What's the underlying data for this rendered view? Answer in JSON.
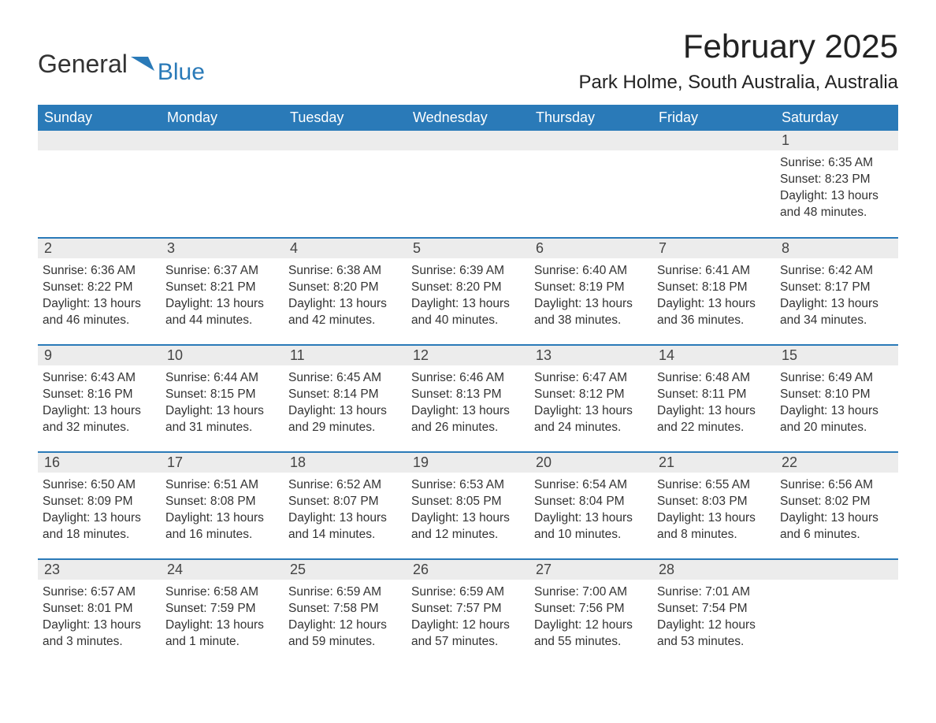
{
  "logo": {
    "text_general": "General",
    "text_blue": "Blue"
  },
  "title": "February 2025",
  "location": "Park Holme, South Australia, Australia",
  "columns": [
    "Sunday",
    "Monday",
    "Tuesday",
    "Wednesday",
    "Thursday",
    "Friday",
    "Saturday"
  ],
  "colors": {
    "header_bg": "#2a7ab8",
    "header_text": "#ffffff",
    "daynum_bg": "#ececec",
    "row_border": "#2a7ab8",
    "body_text": "#333333",
    "logo_blue": "#2a7ab8"
  },
  "weeks": [
    [
      null,
      null,
      null,
      null,
      null,
      null,
      {
        "n": "1",
        "sunrise": "6:35 AM",
        "sunset": "8:23 PM",
        "daylight": "13 hours and 48 minutes."
      }
    ],
    [
      {
        "n": "2",
        "sunrise": "6:36 AM",
        "sunset": "8:22 PM",
        "daylight": "13 hours and 46 minutes."
      },
      {
        "n": "3",
        "sunrise": "6:37 AM",
        "sunset": "8:21 PM",
        "daylight": "13 hours and 44 minutes."
      },
      {
        "n": "4",
        "sunrise": "6:38 AM",
        "sunset": "8:20 PM",
        "daylight": "13 hours and 42 minutes."
      },
      {
        "n": "5",
        "sunrise": "6:39 AM",
        "sunset": "8:20 PM",
        "daylight": "13 hours and 40 minutes."
      },
      {
        "n": "6",
        "sunrise": "6:40 AM",
        "sunset": "8:19 PM",
        "daylight": "13 hours and 38 minutes."
      },
      {
        "n": "7",
        "sunrise": "6:41 AM",
        "sunset": "8:18 PM",
        "daylight": "13 hours and 36 minutes."
      },
      {
        "n": "8",
        "sunrise": "6:42 AM",
        "sunset": "8:17 PM",
        "daylight": "13 hours and 34 minutes."
      }
    ],
    [
      {
        "n": "9",
        "sunrise": "6:43 AM",
        "sunset": "8:16 PM",
        "daylight": "13 hours and 32 minutes."
      },
      {
        "n": "10",
        "sunrise": "6:44 AM",
        "sunset": "8:15 PM",
        "daylight": "13 hours and 31 minutes."
      },
      {
        "n": "11",
        "sunrise": "6:45 AM",
        "sunset": "8:14 PM",
        "daylight": "13 hours and 29 minutes."
      },
      {
        "n": "12",
        "sunrise": "6:46 AM",
        "sunset": "8:13 PM",
        "daylight": "13 hours and 26 minutes."
      },
      {
        "n": "13",
        "sunrise": "6:47 AM",
        "sunset": "8:12 PM",
        "daylight": "13 hours and 24 minutes."
      },
      {
        "n": "14",
        "sunrise": "6:48 AM",
        "sunset": "8:11 PM",
        "daylight": "13 hours and 22 minutes."
      },
      {
        "n": "15",
        "sunrise": "6:49 AM",
        "sunset": "8:10 PM",
        "daylight": "13 hours and 20 minutes."
      }
    ],
    [
      {
        "n": "16",
        "sunrise": "6:50 AM",
        "sunset": "8:09 PM",
        "daylight": "13 hours and 18 minutes."
      },
      {
        "n": "17",
        "sunrise": "6:51 AM",
        "sunset": "8:08 PM",
        "daylight": "13 hours and 16 minutes."
      },
      {
        "n": "18",
        "sunrise": "6:52 AM",
        "sunset": "8:07 PM",
        "daylight": "13 hours and 14 minutes."
      },
      {
        "n": "19",
        "sunrise": "6:53 AM",
        "sunset": "8:05 PM",
        "daylight": "13 hours and 12 minutes."
      },
      {
        "n": "20",
        "sunrise": "6:54 AM",
        "sunset": "8:04 PM",
        "daylight": "13 hours and 10 minutes."
      },
      {
        "n": "21",
        "sunrise": "6:55 AM",
        "sunset": "8:03 PM",
        "daylight": "13 hours and 8 minutes."
      },
      {
        "n": "22",
        "sunrise": "6:56 AM",
        "sunset": "8:02 PM",
        "daylight": "13 hours and 6 minutes."
      }
    ],
    [
      {
        "n": "23",
        "sunrise": "6:57 AM",
        "sunset": "8:01 PM",
        "daylight": "13 hours and 3 minutes."
      },
      {
        "n": "24",
        "sunrise": "6:58 AM",
        "sunset": "7:59 PM",
        "daylight": "13 hours and 1 minute."
      },
      {
        "n": "25",
        "sunrise": "6:59 AM",
        "sunset": "7:58 PM",
        "daylight": "12 hours and 59 minutes."
      },
      {
        "n": "26",
        "sunrise": "6:59 AM",
        "sunset": "7:57 PM",
        "daylight": "12 hours and 57 minutes."
      },
      {
        "n": "27",
        "sunrise": "7:00 AM",
        "sunset": "7:56 PM",
        "daylight": "12 hours and 55 minutes."
      },
      {
        "n": "28",
        "sunrise": "7:01 AM",
        "sunset": "7:54 PM",
        "daylight": "12 hours and 53 minutes."
      },
      null
    ]
  ],
  "labels": {
    "sunrise": "Sunrise:",
    "sunset": "Sunset:",
    "daylight": "Daylight:"
  }
}
